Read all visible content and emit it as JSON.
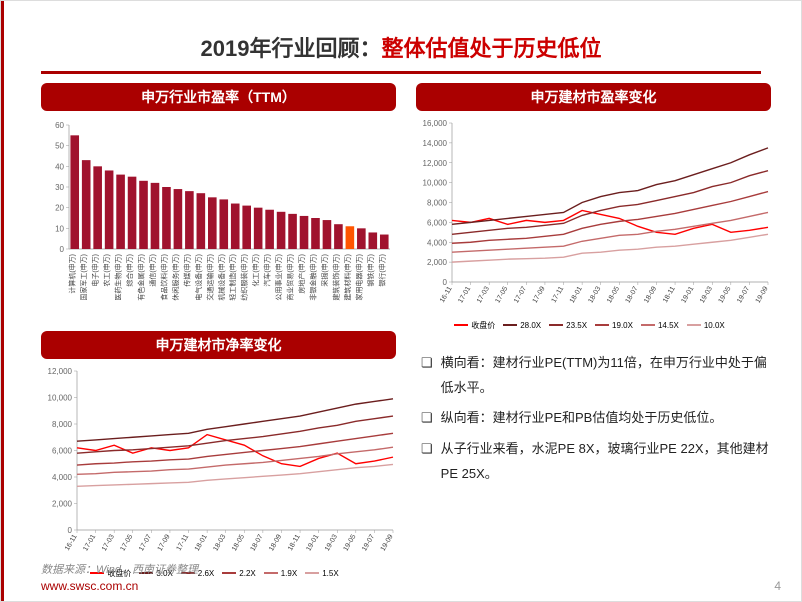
{
  "title_prefix": "2019年行业回顾：",
  "title_highlight": "整体估值处于历史低位",
  "panel1": {
    "header": "申万行业市盈率（TTM）",
    "ylim": [
      0,
      60
    ],
    "ytick_step": 10,
    "bar_color": "#a0122d",
    "highlight_color": "#ff5500",
    "highlight_index": 24,
    "categories": [
      "计算机(申万)",
      "国家军工(申万)",
      "电子(申万)",
      "农工(申万)",
      "医药生物(申万)",
      "综合(申万)",
      "有色金属(申万)",
      "通信(申万)",
      "食品饮料(申万)",
      "休闲服务(申万)",
      "传媒(申万)",
      "电气设备(申万)",
      "交通运输(申万)",
      "机械设备(申万)",
      "轻工制造(申万)",
      "纺织服装(申万)",
      "化工(申万)",
      "汽车(申万)",
      "公用事业(申万)",
      "商业贸易(申万)",
      "房地产(申万)",
      "非银金融(申万)",
      "采掘(申万)",
      "建筑装饰(申万)",
      "建筑材料(申万)",
      "家用电器(申万)",
      "钢铁(申万)",
      "银行(申万)"
    ],
    "values": [
      55,
      43,
      40,
      38,
      36,
      35,
      33,
      32,
      30,
      29,
      28,
      27,
      25,
      24,
      22,
      21,
      20,
      19,
      18,
      17,
      16,
      15,
      14,
      12,
      11,
      10,
      8,
      7
    ]
  },
  "panel2": {
    "header": "申万建材市盈率变化",
    "ylim": [
      0,
      16000
    ],
    "ytick_step": 2000,
    "xlabels": [
      "16-11",
      "17-01",
      "17-03",
      "17-05",
      "17-07",
      "17-09",
      "17-11",
      "18-01",
      "18-03",
      "18-05",
      "18-07",
      "18-09",
      "18-11",
      "19-01",
      "19-03",
      "19-05",
      "19-07",
      "19-09"
    ],
    "legend": [
      {
        "label": "收盘价",
        "color": "#ff0000"
      },
      {
        "label": "28.0X",
        "color": "#6b1e1e"
      },
      {
        "label": "23.5X",
        "color": "#8a2a2a"
      },
      {
        "label": "19.0X",
        "color": "#a83c3c"
      },
      {
        "label": "14.5X",
        "color": "#c46a6a"
      },
      {
        "label": "10.0X",
        "color": "#d8a0a0"
      }
    ],
    "series": [
      {
        "color": "#ff0000",
        "y": [
          6200,
          6000,
          6400,
          5800,
          6200,
          6000,
          6200,
          7200,
          6800,
          6400,
          5600,
          5000,
          4800,
          5400,
          5800,
          5000,
          5200,
          5500
        ]
      },
      {
        "color": "#6b1e1e",
        "y": [
          5800,
          6000,
          6200,
          6400,
          6600,
          6800,
          7000,
          8000,
          8600,
          9000,
          9200,
          9800,
          10200,
          10800,
          11400,
          12000,
          12800,
          13500
        ]
      },
      {
        "color": "#8a2a2a",
        "y": [
          4800,
          5000,
          5200,
          5400,
          5500,
          5700,
          5900,
          6700,
          7200,
          7600,
          7800,
          8200,
          8600,
          9000,
          9600,
          10000,
          10700,
          11200
        ]
      },
      {
        "color": "#a83c3c",
        "y": [
          3900,
          4000,
          4200,
          4300,
          4400,
          4600,
          4800,
          5400,
          5800,
          6100,
          6300,
          6600,
          6900,
          7300,
          7700,
          8100,
          8600,
          9100
        ]
      },
      {
        "color": "#c46a6a",
        "y": [
          3000,
          3100,
          3200,
          3300,
          3400,
          3500,
          3600,
          4100,
          4400,
          4700,
          4800,
          5100,
          5300,
          5600,
          5900,
          6200,
          6600,
          7000
        ]
      },
      {
        "color": "#d8a0a0",
        "y": [
          2000,
          2100,
          2200,
          2300,
          2350,
          2400,
          2500,
          2900,
          3000,
          3200,
          3300,
          3500,
          3600,
          3800,
          4000,
          4200,
          4500,
          4800
        ]
      }
    ]
  },
  "panel3": {
    "header": "申万建材市净率变化",
    "ylim": [
      0,
      12000
    ],
    "ytick_step": 2000,
    "xlabels": [
      "16-11",
      "17-01",
      "17-03",
      "17-05",
      "17-07",
      "17-09",
      "17-11",
      "18-01",
      "18-03",
      "18-05",
      "18-07",
      "18-09",
      "18-11",
      "19-01",
      "19-03",
      "19-05",
      "19-07",
      "19-09"
    ],
    "legend": [
      {
        "label": "收盘价",
        "color": "#ff0000"
      },
      {
        "label": "3.0X",
        "color": "#6b1e1e"
      },
      {
        "label": "2.6X",
        "color": "#8a2a2a"
      },
      {
        "label": "2.2X",
        "color": "#a83c3c"
      },
      {
        "label": "1.9X",
        "color": "#c46a6a"
      },
      {
        "label": "1.5X",
        "color": "#d8a0a0"
      }
    ],
    "series": [
      {
        "color": "#ff0000",
        "y": [
          6200,
          6000,
          6400,
          5800,
          6200,
          6000,
          6200,
          7200,
          6800,
          6400,
          5600,
          5000,
          4800,
          5400,
          5800,
          5000,
          5200,
          5500
        ]
      },
      {
        "color": "#6b1e1e",
        "y": [
          6700,
          6800,
          6900,
          7000,
          7100,
          7200,
          7300,
          7600,
          7800,
          8000,
          8200,
          8400,
          8600,
          8900,
          9200,
          9500,
          9700,
          9900
        ]
      },
      {
        "color": "#8a2a2a",
        "y": [
          5800,
          5900,
          6000,
          6050,
          6150,
          6250,
          6350,
          6550,
          6750,
          6900,
          7050,
          7250,
          7450,
          7700,
          7900,
          8200,
          8400,
          8600
        ]
      },
      {
        "color": "#a83c3c",
        "y": [
          4900,
          5000,
          5050,
          5150,
          5200,
          5300,
          5350,
          5550,
          5700,
          5850,
          6000,
          6150,
          6300,
          6500,
          6700,
          6900,
          7100,
          7300
        ]
      },
      {
        "color": "#c46a6a",
        "y": [
          4200,
          4250,
          4350,
          4400,
          4450,
          4550,
          4600,
          4750,
          4900,
          5000,
          5100,
          5250,
          5400,
          5550,
          5750,
          5900,
          6050,
          6250
        ]
      },
      {
        "color": "#d8a0a0",
        "y": [
          3300,
          3350,
          3400,
          3450,
          3500,
          3550,
          3600,
          3750,
          3850,
          3950,
          4050,
          4150,
          4250,
          4400,
          4550,
          4700,
          4800,
          4950
        ]
      }
    ]
  },
  "bullets": [
    "横向看：建材行业PE(TTM)为11倍，在申万行业中处于偏低水平。",
    "纵向看：建材行业PE和PB估值均处于历史低位。",
    "从子行业来看，水泥PE 8X，玻璃行业PE 22X，其他建材PE 25X。"
  ],
  "source": "数据来源：Wind，西南证券整理",
  "url": "www.swsc.com.cn",
  "page": "4"
}
